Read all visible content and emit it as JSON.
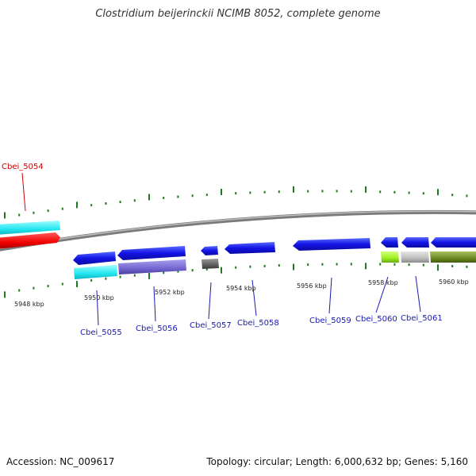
{
  "title": "Clostridium beijerinckii NCIMB 8052, complete genome",
  "footer": {
    "accession": "Accession: NC_009617",
    "summary": "Topology: circular; Length: 6,000,632 bp; Genes: 5,160"
  },
  "colors": {
    "backbone": "#8a8a8a",
    "tick": "#1f7a1f",
    "label_blue": "#1a1ab4",
    "label_red": "#cc0000"
  },
  "scale_labels": [
    "5948 kbp",
    "5950 kbp",
    "5952 kbp",
    "5954 kbp",
    "5956 kbp",
    "5958 kbp",
    "5960 kbp"
  ],
  "genes": [
    {
      "name": "Cbei_5054",
      "color": "#cc0000"
    },
    {
      "name": "Cbei_5055",
      "color": "#1a1ab4"
    },
    {
      "name": "Cbei_5056",
      "color": "#1a1ab4"
    },
    {
      "name": "Cbei_5057",
      "color": "#1a1ab4"
    },
    {
      "name": "Cbei_5058",
      "color": "#1a1ab4"
    },
    {
      "name": "Cbei_5059",
      "color": "#1a1ab4"
    },
    {
      "name": "Cbei_5060",
      "color": "#1a1ab4"
    },
    {
      "name": "Cbei_5061",
      "color": "#1a1ab4"
    }
  ]
}
